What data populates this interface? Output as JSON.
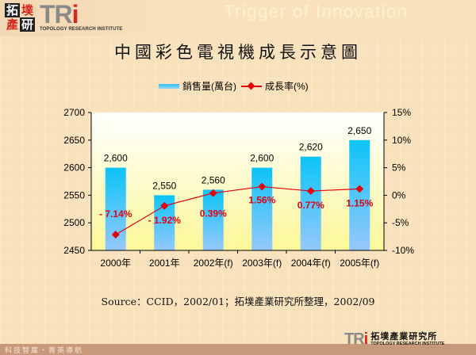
{
  "header": {
    "logo_cn": [
      "拓",
      "墣",
      "產",
      "研"
    ],
    "logo_mark": "TR",
    "logo_mark_i": "i",
    "logo_subtitle": "TOPOLOGY RESEARCH INSTITUTE",
    "tagline": "Trigger of Innovation"
  },
  "title": "中國彩色電視機成長示意圖",
  "legend": {
    "bar_label": "銷售量(萬台)",
    "line_label": "成長率(%)"
  },
  "source": "Source：CCID，2002/01；拓墣產業研究所整理，2002/09",
  "footer": {
    "left_text": "科技智庫・菁英導航",
    "logo_mark": "TR",
    "logo_mark_i": "i",
    "logo_cn": "拓墣產業研究所",
    "logo_en": "TOPOLOGY RESEARCH INSTITUTE"
  },
  "colors": {
    "bar_top": "#0cc4f8",
    "bar_bottom": "#96c8fb",
    "line": "#e4000f",
    "plot_top": "#ffffff",
    "plot_bottom": "#fbf799",
    "page_bg": "#f9e2bb",
    "footer_bg": "#c8987a"
  },
  "chart_data": {
    "type": "bar",
    "title": "中國彩色電視機成長示意圖",
    "categories": [
      "2000年",
      "2001年",
      "2002年(f)",
      "2003年(f)",
      "2004年(f)",
      "2005年(f)"
    ],
    "series": [
      {
        "name": "銷售量(萬台)",
        "type": "bar",
        "axis": "left",
        "values": [
          2600,
          2550,
          2560,
          2600,
          2620,
          2650
        ],
        "labels": [
          "2,600",
          "2,550",
          "2,560",
          "2,600",
          "2,620",
          "2,650"
        ]
      },
      {
        "name": "成長率(%)",
        "type": "line",
        "axis": "right",
        "values": [
          -7.14,
          -1.92,
          0.39,
          1.56,
          0.77,
          1.15
        ],
        "labels": [
          "- 7.14%",
          "- 1.92%",
          "0.39%",
          "1.56%",
          "0.77%",
          "1.15%"
        ]
      }
    ],
    "y_left": {
      "ylim": [
        2450,
        2700
      ],
      "ticks": [
        "2450",
        "2500",
        "2550",
        "2600",
        "2650",
        "2700"
      ]
    },
    "y_right": {
      "ylim": [
        -10,
        15
      ],
      "ticks": [
        "-10%",
        "-5%",
        "0%",
        "5%",
        "10%",
        "15%"
      ]
    },
    "xlabel": "",
    "ylabel": "",
    "legend_position": "top",
    "grid": false
  }
}
